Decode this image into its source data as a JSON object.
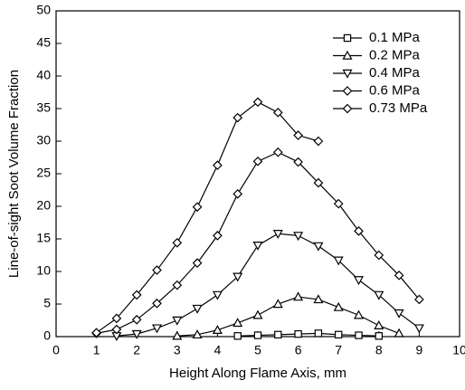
{
  "chart_data": {
    "type": "line",
    "x_label": "Height Along Flame Axis, mm",
    "y_label": "Line-of-sight Soot Volume Fraction",
    "xlim": [
      0,
      10
    ],
    "xticks": [
      0,
      1,
      2,
      3,
      4,
      5,
      6,
      7,
      8,
      9,
      10
    ],
    "ylim": [
      0,
      50
    ],
    "yticks": [
      0,
      5,
      10,
      15,
      20,
      25,
      30,
      35,
      40,
      45,
      50
    ],
    "legend": "upper right",
    "series": [
      {
        "name": "0.1 MPa",
        "color": "#000000",
        "marker": "square",
        "x": [
          4.5,
          5,
          5.5,
          6,
          6.5,
          7,
          7.5,
          8
        ],
        "values": [
          0.1,
          0.2,
          0.3,
          0.4,
          0.5,
          0.3,
          0.2,
          0.1
        ]
      },
      {
        "name": "0.2 MPa",
        "color": "#000000",
        "marker": "triangle-up",
        "x": [
          3,
          3.5,
          4,
          4.5,
          5,
          5.5,
          6,
          6.5,
          7,
          7.5,
          8,
          8.5
        ],
        "values": [
          0.1,
          0.3,
          1.0,
          2.1,
          3.3,
          5.0,
          6.1,
          5.7,
          4.5,
          3.3,
          1.7,
          0.5
        ]
      },
      {
        "name": "0.4 MPa",
        "color": "#000000",
        "marker": "triangle-down",
        "x": [
          1.5,
          2,
          2.5,
          3,
          3.5,
          4,
          4.5,
          5,
          5.5,
          6,
          6.5,
          7,
          7.5,
          8,
          8.5,
          9
        ],
        "values": [
          0.1,
          0.4,
          1.3,
          2.5,
          4.3,
          6.4,
          9.2,
          14.0,
          15.8,
          15.5,
          13.9,
          11.7,
          8.7,
          6.4,
          3.6,
          1.3
        ]
      },
      {
        "name": "0.6 MPa",
        "color": "#000000",
        "marker": "diamond",
        "x": [
          1,
          1.5,
          2,
          2.5,
          3,
          3.5,
          4,
          4.5,
          5,
          5.5,
          6,
          6.5,
          7,
          7.5,
          8,
          8.5,
          9
        ],
        "values": [
          0.5,
          1.1,
          2.6,
          5.1,
          7.9,
          11.3,
          15.5,
          21.9,
          26.9,
          28.3,
          26.8,
          23.6,
          20.4,
          16.2,
          12.5,
          9.4,
          5.7
        ]
      },
      {
        "name": "0.73 MPa",
        "color": "#000000",
        "marker": "diamond",
        "x": [
          1,
          1.5,
          2,
          2.5,
          3,
          3.5,
          4,
          4.5,
          5,
          5.5,
          6,
          6.5
        ],
        "values": [
          0.6,
          2.8,
          6.4,
          10.2,
          14.4,
          19.9,
          26.3,
          33.6,
          36.0,
          34.4,
          30.9,
          30.0
        ]
      }
    ]
  }
}
